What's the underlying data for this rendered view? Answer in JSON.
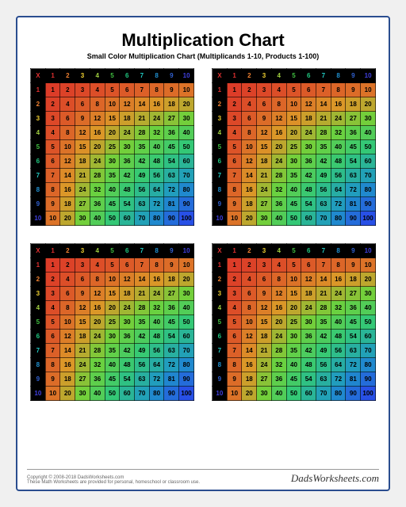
{
  "title": "Multiplication Chart",
  "subtitle": "Small Color Multiplication Chart (Multiplicands 1-10, Products 1-100)",
  "corner_symbol": "X",
  "header_colors": [
    "#e03030",
    "#f08030",
    "#f0d030",
    "#a0d040",
    "#40c040",
    "#20c880",
    "#20c8c0",
    "#2090d0",
    "#3060d0",
    "#4040e0"
  ],
  "size": 10,
  "copyright": "Copyright © 2008-2018 DadsWorksheets.com",
  "disclaimer": "These Math Worksheets are provided for personal, homeschool or classroom use.",
  "brand": "DadsWorksheets.com",
  "num_charts": 4
}
